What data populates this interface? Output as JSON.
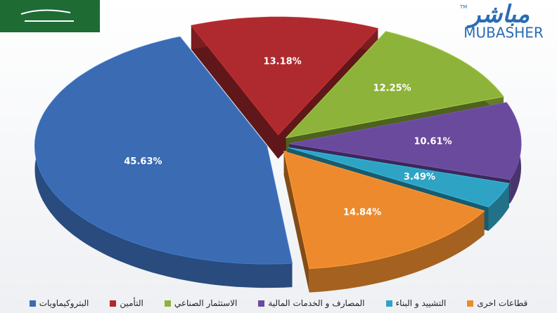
{
  "logo": {
    "arabic": "مباشر",
    "latin": "MUBASHER",
    "tm": "TM"
  },
  "chart_data": {
    "type": "pie",
    "categories": [
      "البتروكيماويات",
      "التأمين",
      "الاستثمار الصناعي",
      "المصارف و الخدمات المالية",
      "التشييد و البناء",
      "قطاعات اخرى"
    ],
    "values": [
      45.63,
      13.18,
      12.25,
      10.61,
      3.49,
      14.84
    ],
    "value_labels": [
      "45.63%",
      "13.18%",
      "12.25%",
      "10.61%",
      "3.49%",
      "14.84%"
    ],
    "colors": [
      "#3a6bb3",
      "#ae2a2e",
      "#8db33a",
      "#6a4a9c",
      "#2fa3c4",
      "#ec8a2d"
    ],
    "legend": "bottom"
  }
}
